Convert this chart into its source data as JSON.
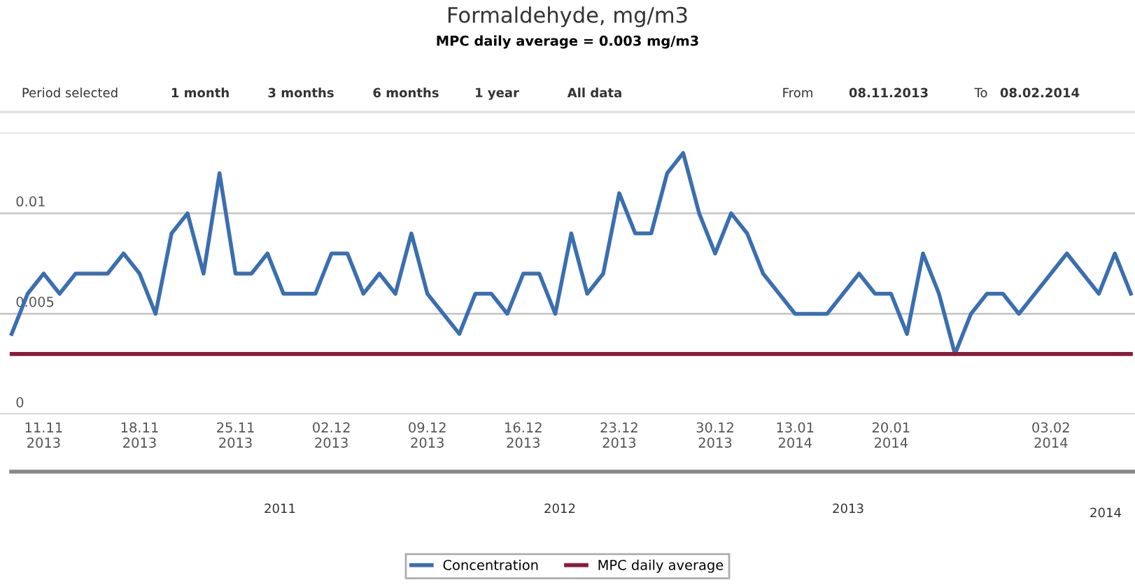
{
  "chart_data": {
    "type": "line",
    "title": "Formaldehyde, mg/m3",
    "subtitle": "MPC daily average = 0.003 mg/m3",
    "categories": [
      null,
      null,
      "11.11\n2013",
      null,
      null,
      null,
      null,
      null,
      "18.11\n2013",
      null,
      null,
      null,
      null,
      null,
      "25.11\n2013",
      null,
      null,
      null,
      null,
      null,
      "02.12\n2013",
      null,
      null,
      null,
      null,
      null,
      "09.12\n2013",
      null,
      null,
      null,
      null,
      null,
      "16.12\n2013",
      null,
      null,
      null,
      null,
      null,
      "23.12\n2013",
      null,
      null,
      null,
      null,
      null,
      "30.12\n2013",
      null,
      null,
      null,
      null,
      "13.01\n2014",
      null,
      null,
      null,
      null,
      null,
      "20.01\n2014",
      null,
      null,
      null,
      null,
      null,
      null,
      null,
      null,
      null,
      "03.02\n2014",
      null,
      null,
      null,
      null,
      null
    ],
    "series": [
      {
        "name": "Concentration",
        "color": "#3a6fb0",
        "values": [
          0.004,
          0.006,
          0.007,
          0.006,
          0.007,
          0.007,
          0.007,
          0.008,
          0.007,
          0.005,
          0.009,
          0.01,
          0.007,
          0.012,
          0.007,
          0.007,
          0.008,
          0.006,
          0.006,
          0.006,
          0.008,
          0.008,
          0.006,
          0.007,
          0.006,
          0.009,
          0.006,
          0.005,
          0.004,
          0.006,
          0.006,
          0.005,
          0.007,
          0.007,
          0.005,
          0.009,
          0.006,
          0.007,
          0.011,
          0.009,
          0.009,
          0.012,
          0.013,
          0.01,
          0.008,
          0.01,
          0.009,
          0.007,
          0.006,
          0.005,
          0.005,
          0.005,
          0.006,
          0.007,
          0.006,
          0.006,
          0.004,
          0.008,
          0.006,
          0.003,
          0.005,
          0.006,
          0.006,
          0.005,
          0.006,
          0.007,
          0.008,
          0.007,
          0.006,
          0.008,
          0.006
        ]
      },
      {
        "name": "MPC daily average",
        "color": "#8b1a3a",
        "values": [
          0.003,
          0.003,
          0.003,
          0.003,
          0.003,
          0.003,
          0.003,
          0.003,
          0.003,
          0.003,
          0.003,
          0.003,
          0.003,
          0.003,
          0.003,
          0.003,
          0.003,
          0.003,
          0.003,
          0.003,
          0.003,
          0.003,
          0.003,
          0.003,
          0.003,
          0.003,
          0.003,
          0.003,
          0.003,
          0.003,
          0.003,
          0.003,
          0.003,
          0.003,
          0.003,
          0.003,
          0.003,
          0.003,
          0.003,
          0.003,
          0.003,
          0.003,
          0.003,
          0.003,
          0.003,
          0.003,
          0.003,
          0.003,
          0.003,
          0.003,
          0.003,
          0.003,
          0.003,
          0.003,
          0.003,
          0.003,
          0.003,
          0.003,
          0.003,
          0.003,
          0.003,
          0.003,
          0.003,
          0.003,
          0.003,
          0.003,
          0.003,
          0.003,
          0.003,
          0.003,
          0.003
        ]
      }
    ],
    "ylim": [
      0,
      0.014
    ],
    "yticks": [
      0,
      0.005,
      0.01
    ],
    "grid": "y",
    "legend": "bottom",
    "marker": "none",
    "line_style": "solid",
    "annotations": [
      "Period selected",
      "1 month",
      "3 months",
      "6 months",
      "1 year",
      "All data",
      "From",
      "08.11.2013",
      "To",
      "08.02.2014",
      "2011",
      "2012",
      "2013",
      "2014"
    ]
  }
}
